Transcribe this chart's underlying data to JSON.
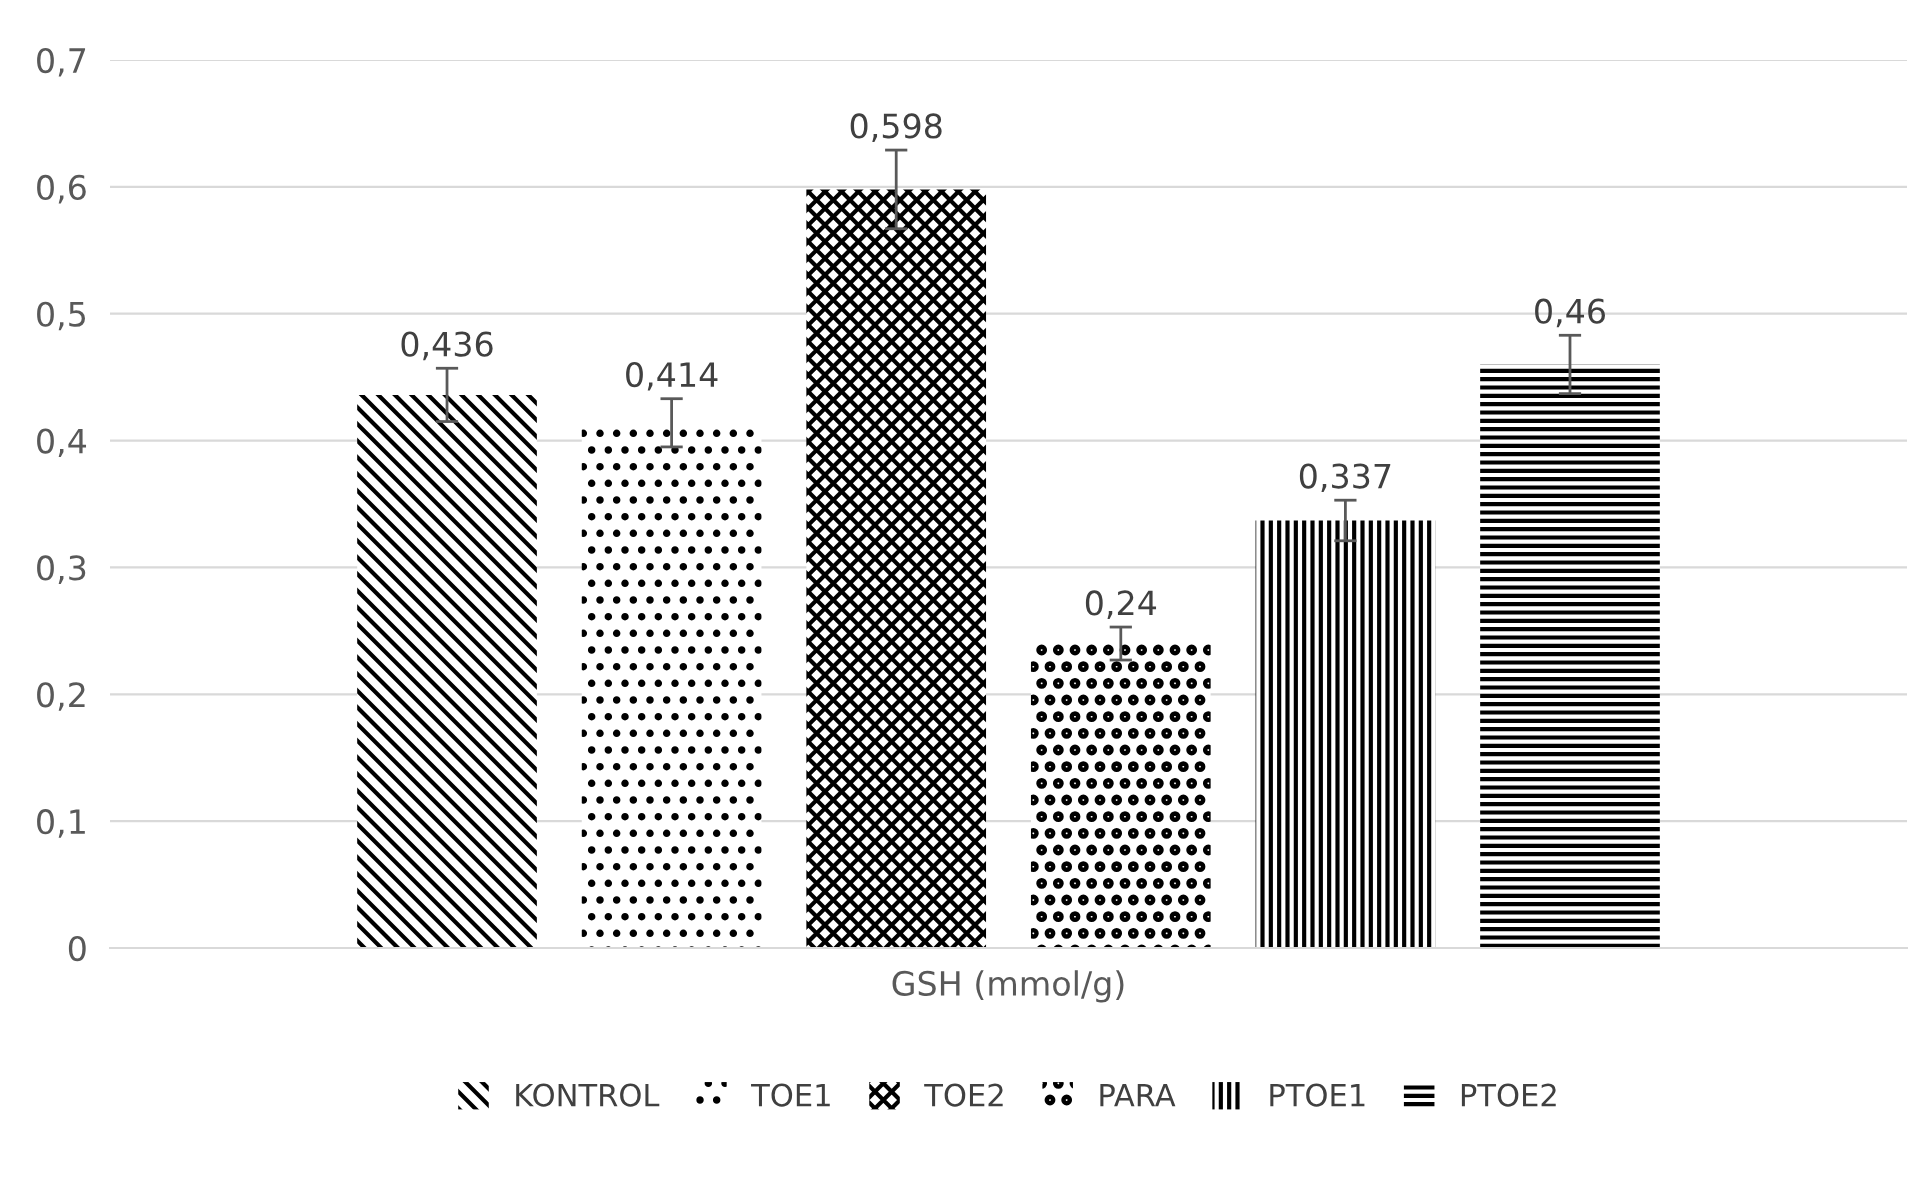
{
  "chart_data": {
    "type": "bar",
    "categories": [
      "GSH (mmol/g)"
    ],
    "series": [
      {
        "name": "KONTROL",
        "color": "#000000",
        "values": [
          0.436
        ],
        "errors": [
          0.021
        ],
        "value_labels": [
          "0,436"
        ]
      },
      {
        "name": "TOE1",
        "color": "#000000",
        "values": [
          0.414
        ],
        "errors": [
          0.019
        ],
        "value_labels": [
          "0,414"
        ]
      },
      {
        "name": "TOE2",
        "color": "#000000",
        "values": [
          0.598
        ],
        "errors": [
          0.031
        ],
        "value_labels": [
          "0,598"
        ]
      },
      {
        "name": "PARA",
        "color": "#000000",
        "values": [
          0.24
        ],
        "errors": [
          0.013
        ],
        "value_labels": [
          "0,24"
        ]
      },
      {
        "name": "PTOE1",
        "color": "#000000",
        "values": [
          0.337
        ],
        "errors": [
          0.016
        ],
        "value_labels": [
          "0,337"
        ]
      },
      {
        "name": "PTOE2",
        "color": "#000000",
        "values": [
          0.46
        ],
        "errors": [
          0.023
        ],
        "value_labels": [
          "0,46"
        ]
      }
    ],
    "ylim": [
      0,
      0.7
    ],
    "yticks": [
      {
        "value": 0,
        "label": "0"
      },
      {
        "value": 0.1,
        "label": "0,1"
      },
      {
        "value": 0.2,
        "label": "0,2"
      },
      {
        "value": 0.3,
        "label": "0,3"
      },
      {
        "value": 0.4,
        "label": "0,4"
      },
      {
        "value": 0.5,
        "label": "0,5"
      },
      {
        "value": 0.6,
        "label": "0,6"
      },
      {
        "value": 0.7,
        "label": "0,7"
      }
    ],
    "grid": "y",
    "legend": "bottom"
  }
}
